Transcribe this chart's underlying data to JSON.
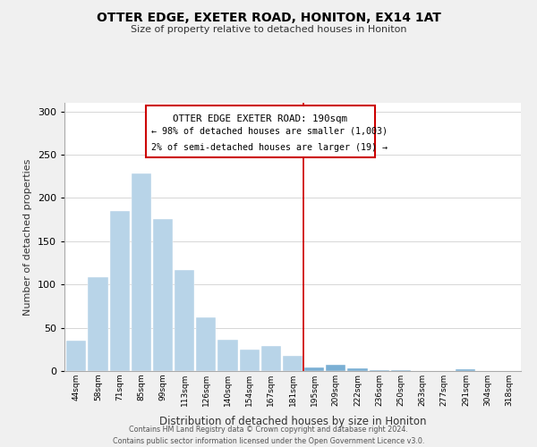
{
  "title": "OTTER EDGE, EXETER ROAD, HONITON, EX14 1AT",
  "subtitle": "Size of property relative to detached houses in Honiton",
  "xlabel": "Distribution of detached houses by size in Honiton",
  "ylabel": "Number of detached properties",
  "bin_labels": [
    "44sqm",
    "58sqm",
    "71sqm",
    "85sqm",
    "99sqm",
    "113sqm",
    "126sqm",
    "140sqm",
    "154sqm",
    "167sqm",
    "181sqm",
    "195sqm",
    "209sqm",
    "222sqm",
    "236sqm",
    "250sqm",
    "263sqm",
    "277sqm",
    "291sqm",
    "304sqm",
    "318sqm"
  ],
  "bar_heights": [
    35,
    108,
    185,
    228,
    176,
    117,
    62,
    36,
    25,
    29,
    18,
    4,
    7,
    3,
    1,
    1,
    0,
    0,
    2,
    0,
    0
  ],
  "bar_color_light": "#b8d4e8",
  "bar_color_dark": "#7aafd4",
  "highlight_index": 11,
  "vline_color": "#cc0000",
  "ylim": [
    0,
    310
  ],
  "yticks": [
    0,
    50,
    100,
    150,
    200,
    250,
    300
  ],
  "annotation_title": "OTTER EDGE EXETER ROAD: 190sqm",
  "annotation_line1": "← 98% of detached houses are smaller (1,003)",
  "annotation_line2": "2% of semi-detached houses are larger (19) →",
  "footer1": "Contains HM Land Registry data © Crown copyright and database right 2024.",
  "footer2": "Contains public sector information licensed under the Open Government Licence v3.0.",
  "background_color": "#f0f0f0",
  "plot_background_color": "#ffffff",
  "grid_color": "#d0d0d0"
}
